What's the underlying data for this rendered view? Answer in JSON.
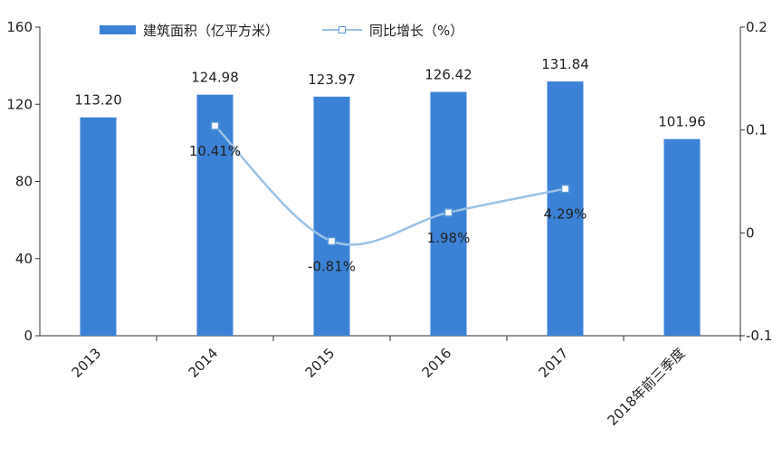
{
  "chart_data": {
    "type": "bar",
    "categories": [
      "2013",
      "2014",
      "2015",
      "2016",
      "2017",
      "2018年前三季度"
    ],
    "series": [
      {
        "name": "建筑面积（亿平方米）",
        "axis": "left",
        "values": [
          113.2,
          124.98,
          123.97,
          126.42,
          131.84,
          101.96
        ],
        "labels": [
          "113.20",
          "124.98",
          "123.97",
          "126.42",
          "131.84",
          "101.96"
        ],
        "color": "#3b82d6"
      },
      {
        "name": "同比增长（%）",
        "type": "line",
        "axis": "right",
        "values": [
          null,
          0.1041,
          -0.0081,
          0.0198,
          0.0429,
          null
        ],
        "labels": [
          "",
          "10.41%",
          "-0.81%",
          "1.98%",
          "4.29%",
          ""
        ],
        "color": "#9cc3e6"
      }
    ],
    "left_axis": {
      "ylim": [
        0,
        160
      ],
      "ticks": [
        "0",
        "40",
        "80",
        "120",
        "160"
      ],
      "tick_values": [
        0,
        40,
        80,
        120,
        160
      ]
    },
    "right_axis": {
      "ylim": [
        -0.1,
        0.2
      ],
      "ticks": [
        "-0.1",
        "0",
        "0.1",
        "0.2"
      ],
      "tick_values": [
        -0.1,
        0,
        0.1,
        0.2
      ]
    },
    "grid": false,
    "legend_position": "top"
  }
}
